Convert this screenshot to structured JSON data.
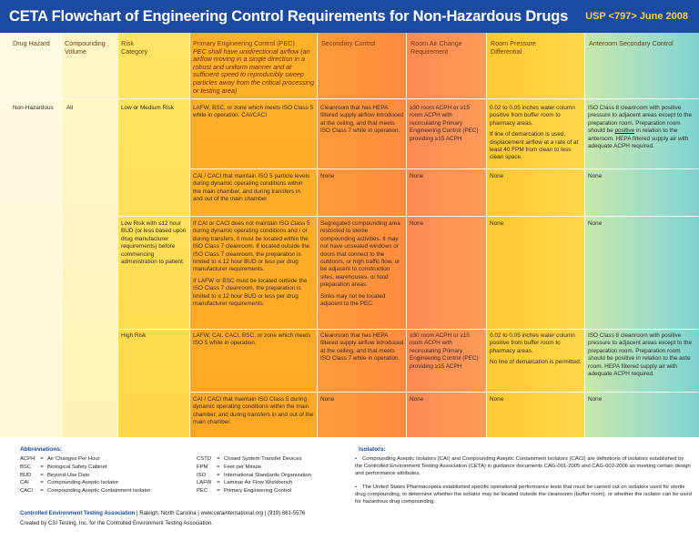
{
  "header": {
    "title": "CETA Flowchart of Engineering Control Requirements for Non-Hazardous Drugs",
    "usp": "USP <797> June 2008"
  },
  "columns": {
    "drug_hazard": "Drug Hazard",
    "compounding_volume": "Compounding Volume",
    "risk_category": "Risk Category",
    "pec_title": "Primary Engineering Control (PEC)",
    "pec_note": "PEC shall have unidirectional airflow (an airflow moving in a single direction in a robust and uniform manner and at sufficient speed to reproducibly sweep particles away from the critical processing or testing area)",
    "secondary_control": "Secondary Control",
    "room_air_change": "Room Air Change Requirement",
    "room_pressure": "Room Pressure Differential",
    "anteroom": "Anteroom Secondary Control"
  },
  "rows": {
    "drug_hazard": "Non-Hazardous",
    "compounding_volume": "All",
    "r1": {
      "risk": "Low or Medium Risk",
      "pec": "LAFW, BSC, or zone which meets ISO Class 5 while in operation. CAI/CACI",
      "secondary": "Cleanroom that has HEPA filtered supply airflow introduced at the ceiling, and that meets ISO Class 7 while in operation.",
      "air_change": "≥30 room ACPH or ≥15 room ACPH with recirculating Primary Engineering Control (PEC) providing ≥15 ACPH",
      "pressure_a": "0.02 to 0.05 inches water column positive from buffer room to pharmacy areas.",
      "pressure_b": "If line of demarcation is used, displacement airflow at a rate of at least 40 FPM from clean to less clean space.",
      "anteroom_a": "ISO Class 8 cleanroom with positive pressure to adjacent areas except to the preparation room. Preparation room should be ",
      "anteroom_u": "positive",
      "anteroom_b": " in relation to the anteroom. HEPA filtered supply air with adequate ACPH required."
    },
    "r2": {
      "pec": "CAI / CACI that maintain ISO 5 particle levels during dynamic operating conditions within the main chamber, and during transfers in and out of the main chamber",
      "secondary": "None",
      "air_change": "None",
      "pressure": "None",
      "anteroom": "None"
    },
    "r3": {
      "risk": "Low Risk with ≤12 hour BUD (or less based upon drug manufacturer requirements) before commencing administration to patient.",
      "pec_a": "If CAI or CACI does not maintain ISO Class 5 during dynamic operating conditions and / or during transfers, it must be located within the ISO Class 7 cleanroom. If located outside the ISO Class 7 cleanroom, the preparation is limited to ≤ 12 hour BUD or less per drug manufacturer requirements.",
      "pec_b": "If LAFW or BSC must be located outside the ISO Class 7 cleanroom, the preparation is limited to ≤ 12 hour BUD or less per drug manufacturer requirements.",
      "secondary_a": "Segregated compounding area restricted to sterile compounding activities. It may not have unsealed windows or doors that connect to the outdoors, or high traffic flow, or be adjacent to construction sites, warehouses, or food preparation areas.",
      "secondary_b": "Sinks may not be located adjacent to the PEC.",
      "air_change": "None",
      "pressure": "None",
      "anteroom": "None"
    },
    "r4": {
      "risk": "High Risk",
      "pec": "LAFW, CAI, CACI, BSC, or zone which meets ISO 5 while in operation.",
      "secondary": "Cleanroom that has HEPA filtered supply airflow introduced at the ceiling, and that meets ISO Class 7 while in operation.",
      "air_change": "≥30 room ACPH or ≥15 room ACPH with recirculating Primary Engineering Control (PEC) providing ≥15 ACPH",
      "pressure_a": "0.02 to 0.05 inches water column positive from buffer room to pharmacy areas.",
      "pressure_b": "No line of demarcation is permitted.",
      "anteroom": "ISO Class 8 cleanroom with positive pressure to adjacent areas except to the preparation room. Preparation room should be positive in relation to the ante room. HEPA filtered supply air with adequate ACPH required."
    },
    "r5": {
      "pec": "CAI / CACI that maintain ISO Class 5 during dynamic operating conditions within the main chamber, and during transfers in and out of the main chamber.",
      "secondary": "None",
      "air_change": "None",
      "pressure": "None",
      "anteroom": "None"
    }
  },
  "abbreviations": {
    "title": "Abbreviations:",
    "left": [
      {
        "k": "ACPH",
        "v": "Air Changes Per Hour"
      },
      {
        "k": "BSC",
        "v": "Biological Safety Cabinet"
      },
      {
        "k": "BUD",
        "v": "Beyond-Use Date"
      },
      {
        "k": "CAI",
        "v": "Compounding Aseptic Isolator"
      },
      {
        "k": "CACI",
        "v": "Compounding Aseptic Containment Isolator"
      }
    ],
    "right": [
      {
        "k": "CSTD",
        "v": "Closed System Transfer Devices"
      },
      {
        "k": "FPM",
        "v": "Feet per Minute"
      },
      {
        "k": "ISO",
        "v": "International Standards Organization"
      },
      {
        "k": "LAFW",
        "v": "Laminar Air Flow Workbench"
      },
      {
        "k": "PEC",
        "v": "Primary Engineering Control"
      }
    ],
    "eq": "="
  },
  "isolators": {
    "title": "Isolators:",
    "bullet": "•",
    "p1": "Compounding Aseptic Isolators (CAI) and Compounding Aseptic Containment Isolators (CACI) are definitions of isolators established by the Controlled Environment Testing Association (CETA) in guidance documents CAG-001-2005 and CAG-002-2006 as meeting certain design and performance attributes.",
    "p2": "The United States Pharmacopeia established specific operational performance tests that must be carried out on isolators used for sterile drug compounding, to determine whether the isolator may be located outside the cleanroom (buffer room), or whether the isolator can be used for hazardous drug compounding."
  },
  "footer": {
    "org": "Controlled Environment Testing Association",
    "sep1": " | Raleigh, North Carolina | ",
    "url": "www.cetainternational.org",
    "sep2": " | (919) 861-5576",
    "created": "Created by CSI Testing, Inc. for the Controlled Environment Testing Association."
  }
}
